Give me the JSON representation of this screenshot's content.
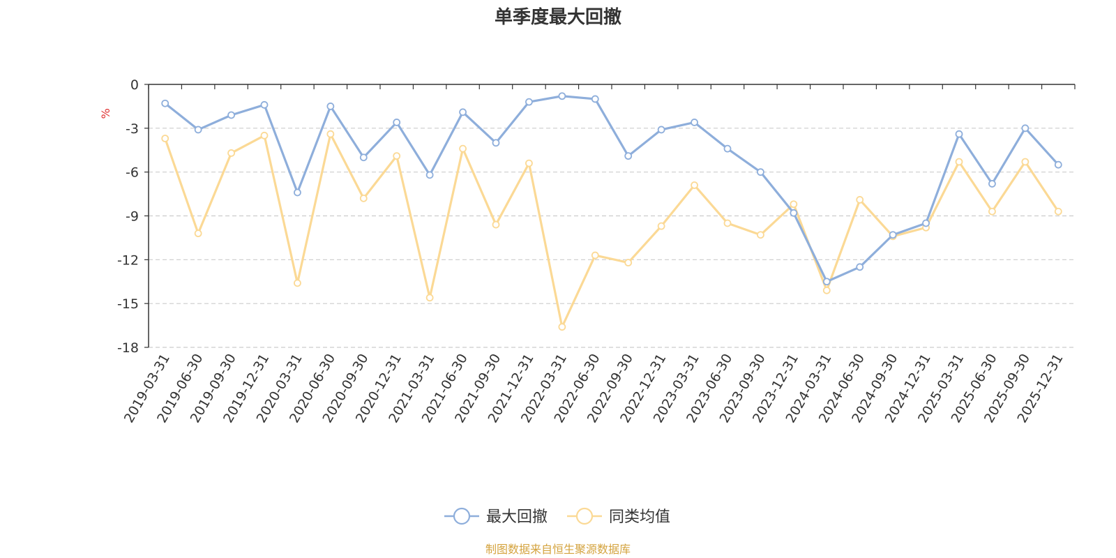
{
  "chart_data": {
    "type": "line",
    "title": "单季度最大回撤",
    "ylabel": "%",
    "ylim": [
      -18,
      0
    ],
    "yticks": [
      0,
      -3,
      -6,
      -9,
      -12,
      -15,
      -18
    ],
    "grid": true,
    "legend_position": "bottom-center",
    "categories": [
      "2019-03-31",
      "2019-06-30",
      "2019-09-30",
      "2019-12-31",
      "2020-03-31",
      "2020-06-30",
      "2020-09-30",
      "2020-12-31",
      "2021-03-31",
      "2021-06-30",
      "2021-09-30",
      "2021-12-31",
      "2022-03-31",
      "2022-06-30",
      "2022-09-30",
      "2022-12-31",
      "2023-03-31",
      "2023-06-30",
      "2023-09-30",
      "2023-12-31",
      "2024-03-31",
      "2024-06-30",
      "2024-09-30",
      "2024-12-31",
      "2025-03-31",
      "2025-06-30",
      "2025-09-30",
      "2025-12-31"
    ],
    "series": [
      {
        "name": "最大回撤",
        "color": "#8eaedb",
        "values": [
          -1.3,
          -3.1,
          -2.1,
          -1.4,
          -7.4,
          -1.5,
          -5.0,
          -2.6,
          -6.2,
          -1.9,
          -4.0,
          -1.2,
          -0.8,
          -1.0,
          -4.9,
          -3.1,
          -2.6,
          -4.4,
          -6.0,
          -8.8,
          -13.5,
          -12.5,
          -10.3,
          -9.5,
          -3.4,
          -6.8,
          -3.0,
          -5.5
        ]
      },
      {
        "name": "同类均值",
        "color": "#fbd995",
        "values": [
          -3.7,
          -10.2,
          -4.7,
          -3.5,
          -13.6,
          -3.4,
          -7.8,
          -4.9,
          -14.6,
          -4.4,
          -9.6,
          -5.4,
          -16.6,
          -11.7,
          -12.2,
          -9.7,
          -6.9,
          -9.5,
          -10.3,
          -8.2,
          -14.1,
          -7.9,
          -10.4,
          -9.8,
          -5.3,
          -8.7,
          -5.3,
          -8.7
        ]
      }
    ]
  },
  "source_note": "制图数据来自恒生聚源数据库",
  "source_color": "#d4a33e",
  "unit_color": "#e03030"
}
